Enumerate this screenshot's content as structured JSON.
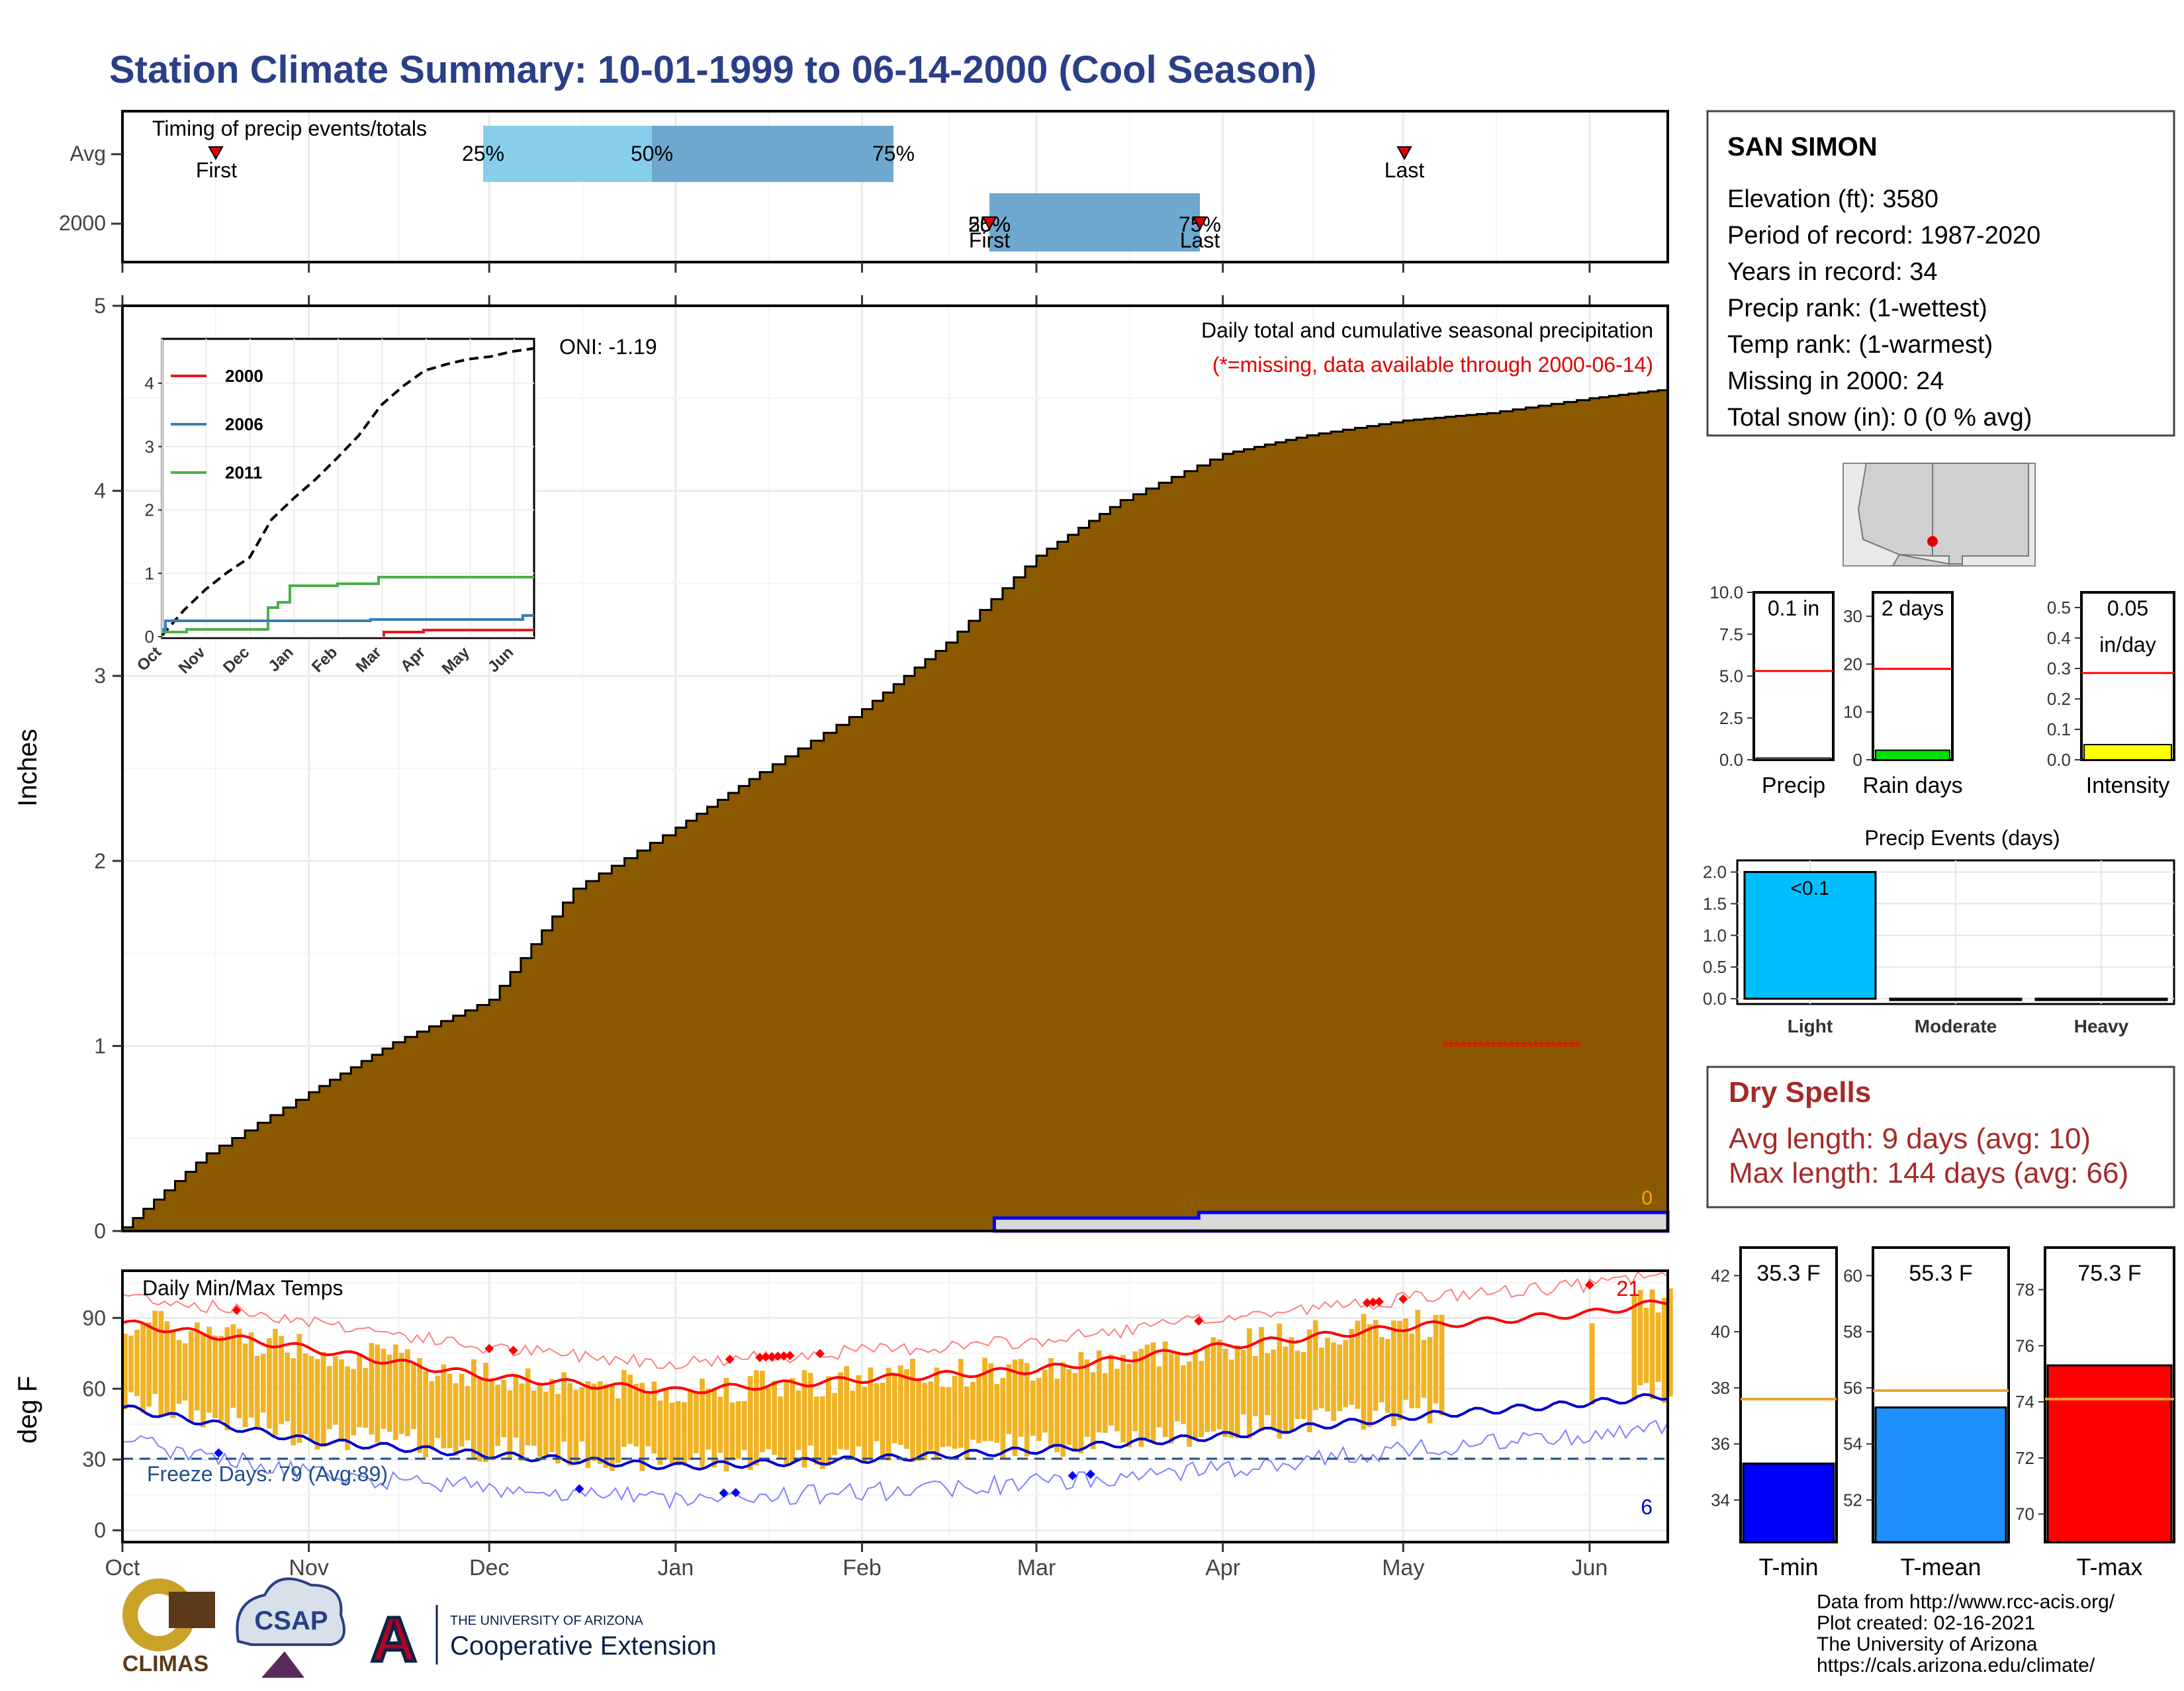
{
  "title": "Station Climate Summary: 10-01-1999 to 06-14-2000 (Cool Season)",
  "timing": {
    "label": "Timing of precip events/totals",
    "rows": [
      "Avg",
      "2000"
    ],
    "avg": {
      "first_label": "First",
      "last_label": "Last",
      "p25": "25%",
      "p50": "50%",
      "p75": "75%"
    },
    "yr": {
      "first_label": "First",
      "last_label": "Last",
      "p25": "25%",
      "p50": "50%",
      "p75": "75%"
    }
  },
  "months": [
    "Oct",
    "Nov",
    "Dec",
    "Jan",
    "Feb",
    "Mar",
    "Apr",
    "May",
    "Jun"
  ],
  "precip": {
    "ylabel": "Inches",
    "yticks": [
      "0",
      "1",
      "2",
      "3",
      "4",
      "5"
    ],
    "caption1": "Daily total and cumulative seasonal precipitation",
    "caption2": "(*=missing, data available through 2000-06-14)",
    "oni": "ONI: -1.19",
    "zero_label": "0"
  },
  "inset": {
    "yticks": [
      "0",
      "1",
      "2",
      "3",
      "4"
    ],
    "months": [
      "Oct",
      "Nov",
      "Dec",
      "Jan",
      "Feb",
      "Mar",
      "Apr",
      "May",
      "Jun"
    ],
    "legend": [
      {
        "name": "2000",
        "color": "#e41a1c"
      },
      {
        "name": "2006",
        "color": "#377eb8"
      },
      {
        "name": "2011",
        "color": "#4daf4a"
      }
    ]
  },
  "temps": {
    "ylabel": "deg F",
    "label": "Daily Min/Max Temps",
    "yticks": [
      "0",
      "30",
      "60",
      "90"
    ],
    "freeze": "Freeze Days: 79 (Avg:89)",
    "hot_count": "21",
    "cold_count": "6"
  },
  "station": {
    "name": "SAN SIMON",
    "lines": [
      "Elevation (ft): 3580",
      "Period of record: 1987-2020",
      "Years in record: 34",
      "Precip rank:  (1-wettest)",
      "Temp rank:  (1-warmest)",
      "Missing in 2000: 24",
      "Total snow (in): 0 (0 % avg)"
    ]
  },
  "mini_bars": [
    {
      "label": "Precip",
      "value_label": "0.1 in",
      "value": 0.1,
      "avg": 5.3,
      "ymax": 10,
      "yticks": [
        "0.0",
        "2.5",
        "5.0",
        "7.5",
        "10.0"
      ],
      "color": "#ffffff"
    },
    {
      "label": "Rain days",
      "value_label": "2 days",
      "value": 2,
      "avg": 19,
      "ymax": 35,
      "yticks": [
        "0",
        "10",
        "20",
        "30"
      ],
      "color": "#00e000"
    },
    {
      "label": "Intensity",
      "value_label": "0.05",
      "value_label2": "in/day",
      "value": 0.05,
      "avg": 0.285,
      "ymax": 0.55,
      "yticks": [
        "0.0",
        "0.1",
        "0.2",
        "0.3",
        "0.4",
        "0.5"
      ],
      "color": "#ffff00"
    }
  ],
  "events": {
    "title": "Precip Events (days)",
    "yticks": [
      "0.0",
      "0.5",
      "1.0",
      "1.5",
      "2.0"
    ],
    "categories": [
      "Light",
      "Moderate",
      "Heavy"
    ],
    "values": [
      2,
      0,
      0
    ],
    "bar_label": "<0.1",
    "color": "#00bfff"
  },
  "dry": {
    "title": "Dry Spells",
    "avg": "Avg length: 9 days (avg: 10)",
    "max": "Max length: 144 days (avg: 66)"
  },
  "temp_bars": [
    {
      "label": "T-min",
      "value_label": "35.3 F",
      "value": 35.3,
      "avg": 37.6,
      "ymin": 32.5,
      "ymax": 43,
      "yticks": [
        "34",
        "36",
        "38",
        "40",
        "42"
      ],
      "color": "#0000ff"
    },
    {
      "label": "T-mean",
      "value_label": "55.3 F",
      "value": 55.3,
      "avg": 55.9,
      "ymin": 50.5,
      "ymax": 61,
      "yticks": [
        "52",
        "54",
        "56",
        "58",
        "60"
      ],
      "color": "#1e90ff"
    },
    {
      "label": "T-max",
      "value_label": "75.3 F",
      "value": 75.3,
      "avg": 74.1,
      "ymin": 69,
      "ymax": 79.5,
      "yticks": [
        "70",
        "72",
        "74",
        "76",
        "78"
      ],
      "color": "#ff0000"
    }
  ],
  "footer": [
    "Data from http://www.rcc-acis.org/",
    "Plot created: 02-16-2021",
    "The University of Arizona",
    "https://cals.arizona.edu/climate/"
  ],
  "logos": {
    "climas": "CLIMAS",
    "csap": "CSAP",
    "ua_small": "THE UNIVERSITY OF ARIZONA",
    "ua_big": "Cooperative Extension",
    "ua_letter": "A"
  },
  "chart_data": [
    {
      "type": "area",
      "title": "Daily total and cumulative seasonal precipitation",
      "ylabel": "Inches",
      "ylim": [
        0,
        5
      ],
      "x": [
        "1999-10-01",
        "1999-10-15",
        "1999-11-01",
        "1999-11-15",
        "1999-12-01",
        "1999-12-15",
        "2000-01-01",
        "2000-01-15",
        "2000-02-01",
        "2000-02-15",
        "2000-03-01",
        "2000-03-15",
        "2000-04-01",
        "2000-04-15",
        "2000-05-01",
        "2000-05-15",
        "2000-06-01",
        "2000-06-14"
      ],
      "series": [
        {
          "name": "Avg cumulative",
          "values": [
            0.02,
            0.42,
            0.75,
            1.02,
            1.25,
            1.85,
            2.18,
            2.48,
            2.82,
            3.18,
            3.65,
            3.95,
            4.2,
            4.3,
            4.38,
            4.42,
            4.5,
            4.55
          ]
        },
        {
          "name": "2000 cumulative",
          "values": [
            0,
            0,
            0,
            0,
            0,
            0,
            0,
            0,
            0,
            0,
            0.07,
            0.07,
            0.1,
            0.1,
            0.1,
            0.1,
            0.1,
            0.1
          ]
        }
      ]
    },
    {
      "type": "line",
      "title": "Daily Min/Max Temps",
      "ylabel": "deg F",
      "ylim": [
        -5,
        110
      ],
      "x": [
        "1999-10-01",
        "1999-11-01",
        "1999-12-01",
        "2000-01-01",
        "2000-02-01",
        "2000-03-01",
        "2000-04-01",
        "2000-05-01",
        "2000-06-01",
        "2000-06-14"
      ],
      "series": [
        {
          "name": "Avg max",
          "values": [
            88,
            77,
            65,
            59,
            64,
            68,
            78,
            86,
            92,
            97
          ]
        },
        {
          "name": "Avg min",
          "values": [
            52,
            38,
            32,
            27,
            30,
            34,
            40,
            48,
            54,
            57
          ]
        }
      ]
    }
  ]
}
